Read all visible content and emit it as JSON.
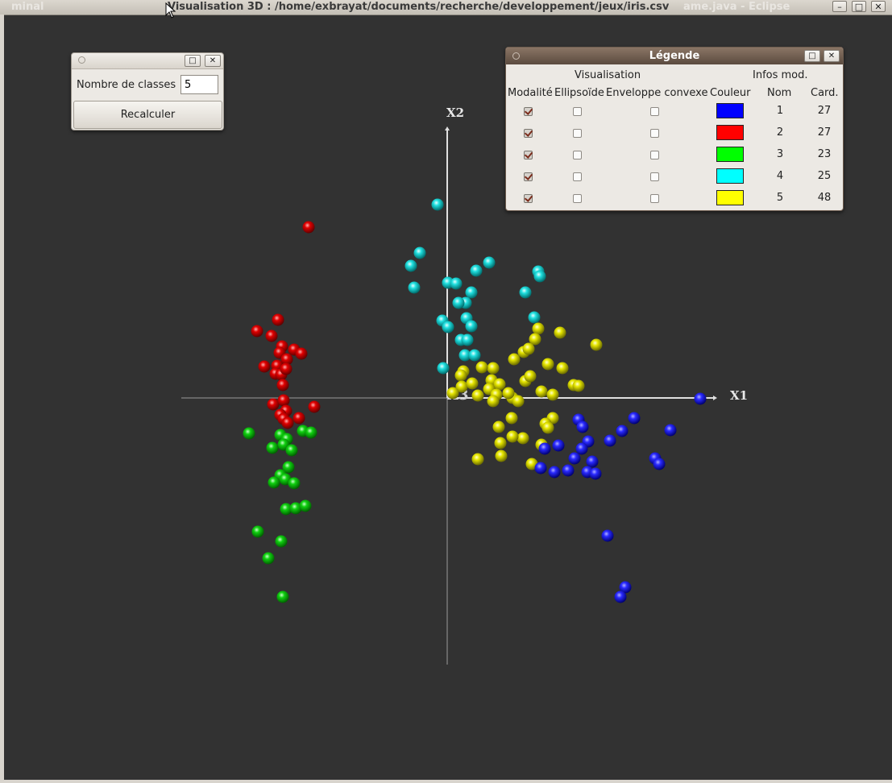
{
  "window": {
    "title": "Visualisation 3D : /home/exbrayat/documents/recherche/developpement/jeux/iris.csv",
    "ghost_left": "minal",
    "ghost_right": "ame.java - Eclipse",
    "buttons": {
      "minimize": "–",
      "maximize": "□",
      "close": "✕"
    }
  },
  "axes": {
    "x_label": "X1",
    "y_label": "X2",
    "z_label": "X3"
  },
  "classes_dialog": {
    "label": "Nombre de classes",
    "value": "5",
    "recalc_label": "Recalculer",
    "maximize_label": "□",
    "close_label": "✕"
  },
  "legend": {
    "title": "Légende",
    "maximize_label": "□",
    "close_label": "✕",
    "group_visualisation": "Visualisation",
    "group_infos": "Infos mod.",
    "col_modalite": "Modalité",
    "col_ellipsoide": "Ellipsoïde",
    "col_enveloppe": "Enveloppe convexe",
    "col_couleur": "Couleur",
    "col_nom": "Nom",
    "col_card": "Card.",
    "rows": [
      {
        "modalite": true,
        "ellipsoide": false,
        "enveloppe": false,
        "color": "#0000ff",
        "nom": "1",
        "card": "27"
      },
      {
        "modalite": true,
        "ellipsoide": false,
        "enveloppe": false,
        "color": "#ff0000",
        "nom": "2",
        "card": "27"
      },
      {
        "modalite": true,
        "ellipsoide": false,
        "enveloppe": false,
        "color": "#00ff00",
        "nom": "3",
        "card": "23"
      },
      {
        "modalite": true,
        "ellipsoide": false,
        "enveloppe": false,
        "color": "#00ffff",
        "nom": "4",
        "card": "25"
      },
      {
        "modalite": true,
        "ellipsoide": false,
        "enveloppe": false,
        "color": "#ffff00",
        "nom": "5",
        "card": "48"
      }
    ]
  },
  "colors": {
    "background": "#323232",
    "axis": "#d8d8d8"
  }
}
